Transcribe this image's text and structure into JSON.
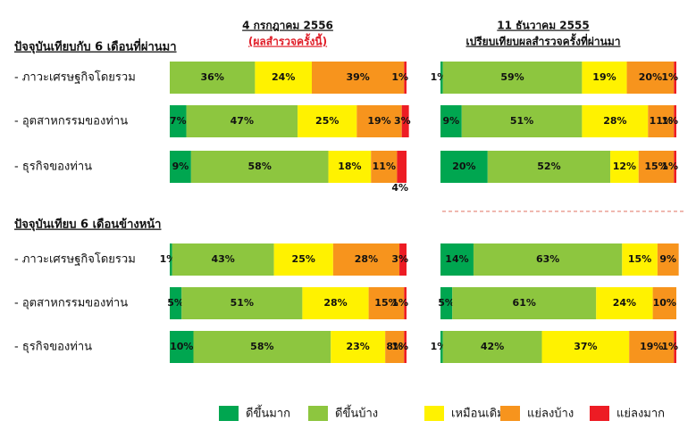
{
  "chart_data": {
    "type": "stacked_bar",
    "columns": [
      {
        "title": "4 กรกฎาคม 2556",
        "subtitle": "(ผลสำรวจครั้งนี้)"
      },
      {
        "title": "11 ธันวาคม 2555",
        "subtitle": "เปรียบเทียบผลสำรวจครั้งที่ผ่านมา"
      }
    ],
    "sections": [
      "ปัจจุบันเทียบกับ 6  เดือนที่ผ่านมา",
      "ปัจจุบันเทียบ 6  เดือนข้างหน้า"
    ],
    "categories": [
      "- ภาวะเศรษฐกิจโดยรวม",
      "- อุตสาหกรรมของท่าน",
      "- ธุรกิจของท่าน"
    ],
    "series": [
      {
        "name": "ดีขึ้นมาก",
        "color": "#00a650"
      },
      {
        "name": "ดีขึ้นบ้าง",
        "color": "#8dc63f"
      },
      {
        "name": "เหมือนเดิม",
        "color": "#fff200"
      },
      {
        "name": "แย่ลงบ้าง",
        "color": "#f7941d"
      },
      {
        "name": "แย่ลงมาก",
        "color": "#ed1c24"
      }
    ],
    "xlim": [
      0,
      100
    ],
    "panels": [
      {
        "section": 0,
        "column": 0,
        "values": [
          [
            null,
            36,
            24,
            39,
            1
          ],
          [
            7,
            47,
            25,
            19,
            3
          ],
          [
            9,
            58,
            18,
            11,
            4
          ]
        ],
        "value_labels": [
          [
            null,
            "36%",
            "24%",
            "39%",
            "1%"
          ],
          [
            "7%",
            "47%",
            "25%",
            "19%",
            "3%"
          ],
          [
            "9%",
            "58%",
            "18%",
            "11%",
            "4%"
          ]
        ]
      },
      {
        "section": 0,
        "column": 1,
        "values": [
          [
            1,
            59,
            19,
            20,
            1
          ],
          [
            9,
            51,
            28,
            11,
            1
          ],
          [
            20,
            52,
            12,
            15,
            1
          ]
        ],
        "value_labels": [
          [
            "1%",
            "59%",
            "19%",
            "20%",
            "1%"
          ],
          [
            "9%",
            "51%",
            "28%",
            "11%",
            "1%"
          ],
          [
            "20%",
            "52%",
            "12%",
            "15%",
            "1%"
          ]
        ]
      },
      {
        "section": 1,
        "column": 0,
        "values": [
          [
            1,
            43,
            25,
            28,
            3
          ],
          [
            5,
            51,
            28,
            15,
            1
          ],
          [
            10,
            58,
            23,
            8,
            1
          ]
        ],
        "value_labels": [
          [
            "1%",
            "43%",
            "25%",
            "28%",
            "3%"
          ],
          [
            "5%",
            "51%",
            "28%",
            "15%",
            "1%"
          ],
          [
            "10%",
            "58%",
            "23%",
            "8%",
            "1%"
          ]
        ]
      },
      {
        "section": 1,
        "column": 1,
        "values": [
          [
            14,
            63,
            15,
            9,
            null
          ],
          [
            5,
            61,
            24,
            10,
            null
          ],
          [
            1,
            42,
            37,
            19,
            1
          ]
        ],
        "value_labels": [
          [
            "14%",
            "63%",
            "15%",
            "9%",
            null
          ],
          [
            "5%",
            "61%",
            "24%",
            "10%",
            null
          ],
          [
            "1%",
            "42%",
            "37%",
            "19%",
            "1%"
          ]
        ]
      }
    ]
  }
}
